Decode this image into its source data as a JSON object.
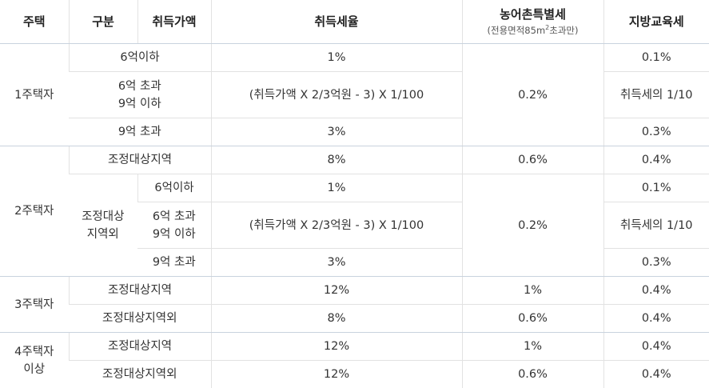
{
  "header": {
    "house": "주택",
    "category": "구분",
    "price": "취득가액",
    "rate": "취득세율",
    "rural": "농어촌특별세",
    "rural_sub_prefix": "(전용면적85m",
    "rural_sub_sup": "2",
    "rural_sub_suffix": "초과만)",
    "edu": "지방교육세"
  },
  "g1": {
    "house": "1주택자",
    "r1": {
      "cat": "6억이하",
      "rate": "1%",
      "edu": "0.1%"
    },
    "r2": {
      "cat_line1": "6억 초과",
      "cat_line2": "9억 이하",
      "rate": "(취득가액 X 2/3억원 - 3) X 1/100",
      "edu": "취득세의 1/10"
    },
    "r3": {
      "cat": "9억 초과",
      "rate": "3%",
      "edu": "0.3%"
    },
    "rural": "0.2%"
  },
  "g2": {
    "house": "2주택자",
    "adj": {
      "cat": "조정대상지역",
      "rate": "8%",
      "rural": "0.6%",
      "edu": "0.4%"
    },
    "nonadj_line1": "조정대상",
    "nonadj_line2": "지역외",
    "r1": {
      "price": "6억이하",
      "rate": "1%",
      "edu": "0.1%"
    },
    "r2": {
      "price_line1": "6억 초과",
      "price_line2": "9억 이하",
      "rate": "(취득가액 X 2/3억원 - 3) X 1/100",
      "edu": "취득세의 1/10"
    },
    "r3": {
      "price": "9억 초과",
      "rate": "3%",
      "edu": "0.3%"
    },
    "rural": "0.2%"
  },
  "g3": {
    "house": "3주택자",
    "adj": {
      "cat": "조정대상지역",
      "rate": "12%",
      "rural": "1%",
      "edu": "0.4%"
    },
    "nonadj": {
      "cat": "조정대상지역외",
      "rate": "8%",
      "rural": "0.6%",
      "edu": "0.4%"
    }
  },
  "g4": {
    "house_line1": "4주택자",
    "house_line2": "이상",
    "adj": {
      "cat": "조정대상지역",
      "rate": "12%",
      "rural": "1%",
      "edu": "0.4%"
    },
    "nonadj": {
      "cat": "조정대상지역외",
      "rate": "12%",
      "rural": "0.6%",
      "edu": "0.4%"
    }
  }
}
